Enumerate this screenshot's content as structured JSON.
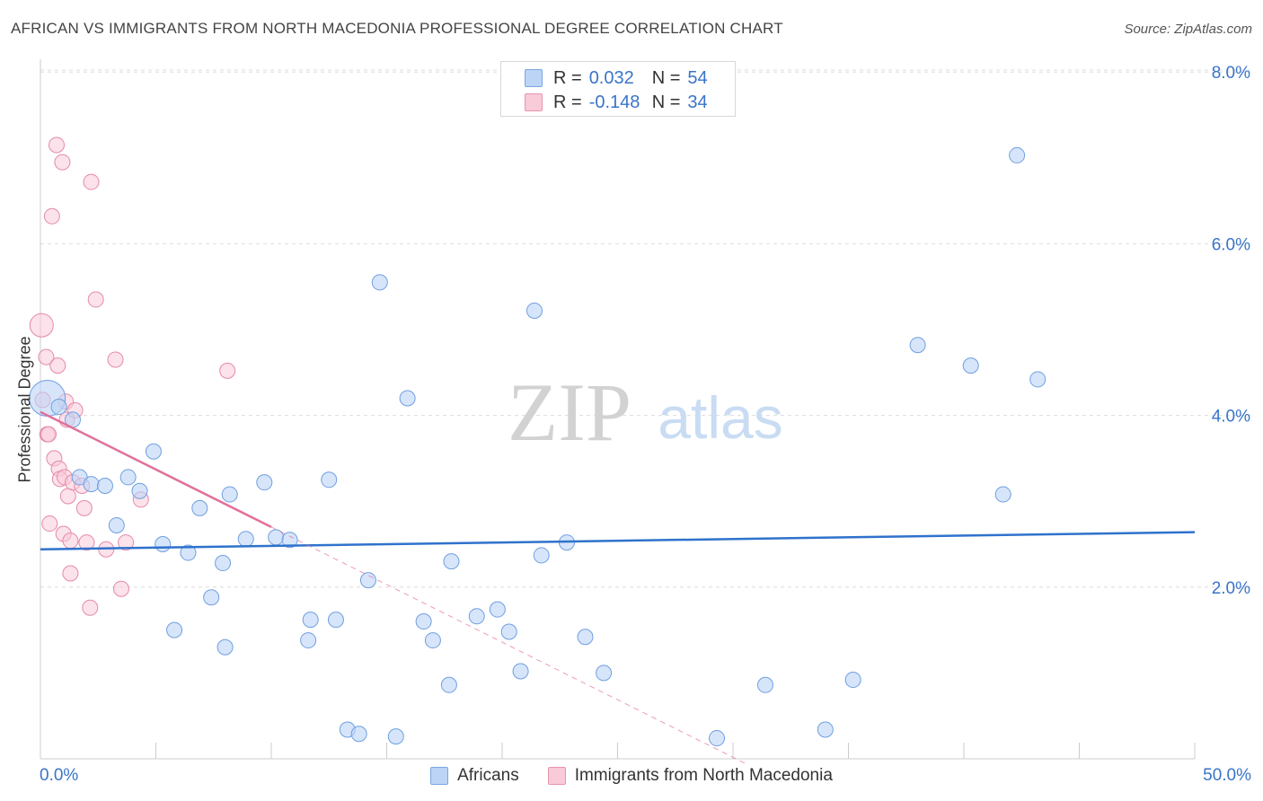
{
  "header": {
    "title": "AFRICAN VS IMMIGRANTS FROM NORTH MACEDONIA PROFESSIONAL DEGREE CORRELATION CHART",
    "source": "Source: ZipAtlas.com"
  },
  "legend_top": {
    "rows": [
      {
        "r_label": "R =",
        "r_value": "0.032",
        "n_label": "N =",
        "n_value": "54"
      },
      {
        "r_label": "R =",
        "r_value": "-0.148",
        "n_label": "N =",
        "n_value": "34"
      }
    ]
  },
  "legend_bottom": {
    "items": [
      {
        "label": "Africans"
      },
      {
        "label": "Immigrants from North Macedonia"
      }
    ]
  },
  "watermark": {
    "zip": "ZIP",
    "atlas": "atlas"
  },
  "colors": {
    "blue_fill": "#bcd4f6",
    "blue_stroke": "#6f9fe0",
    "blue_line": "#2f72cc",
    "pink_fill": "#f9cad8",
    "pink_stroke": "#e58aa8",
    "pink_line": "#e2709a",
    "tick_label": "#3a74c8",
    "grid": "#dddddd"
  },
  "chart_data": {
    "type": "scatter",
    "title": "AFRICAN VS IMMIGRANTS FROM NORTH MACEDONIA PROFESSIONAL DEGREE CORRELATION CHART",
    "xlabel": "",
    "ylabel": "Professional Degree",
    "xlim": [
      0,
      50
    ],
    "ylim": [
      0,
      8.2
    ],
    "x_tick_labels": [
      "0.0%",
      "50.0%"
    ],
    "y_ticks": [
      2,
      4,
      6,
      8
    ],
    "y_tick_labels": [
      "2.0%",
      "4.0%",
      "6.0%",
      "8.0%"
    ],
    "grid": true,
    "legend_position": "top-center",
    "series": [
      {
        "name": "Africans",
        "color": "#bcd4f6",
        "points": [
          {
            "x": 0.3,
            "y": 4.2,
            "big": true
          },
          {
            "x": 0.8,
            "y": 4.1
          },
          {
            "x": 1.4,
            "y": 3.95
          },
          {
            "x": 1.7,
            "y": 3.28
          },
          {
            "x": 2.2,
            "y": 3.2
          },
          {
            "x": 2.8,
            "y": 3.18
          },
          {
            "x": 3.3,
            "y": 2.72
          },
          {
            "x": 3.8,
            "y": 3.28
          },
          {
            "x": 4.3,
            "y": 3.12
          },
          {
            "x": 4.9,
            "y": 3.58
          },
          {
            "x": 5.3,
            "y": 2.5
          },
          {
            "x": 5.8,
            "y": 1.5
          },
          {
            "x": 6.4,
            "y": 2.4
          },
          {
            "x": 6.9,
            "y": 2.92
          },
          {
            "x": 7.4,
            "y": 1.88
          },
          {
            "x": 7.9,
            "y": 2.28
          },
          {
            "x": 8.0,
            "y": 1.3
          },
          {
            "x": 8.2,
            "y": 3.08
          },
          {
            "x": 8.9,
            "y": 2.56
          },
          {
            "x": 9.7,
            "y": 3.22
          },
          {
            "x": 10.2,
            "y": 2.58
          },
          {
            "x": 10.8,
            "y": 2.55
          },
          {
            "x": 11.6,
            "y": 1.38
          },
          {
            "x": 11.7,
            "y": 1.62
          },
          {
            "x": 12.5,
            "y": 3.25
          },
          {
            "x": 12.8,
            "y": 1.62
          },
          {
            "x": 13.3,
            "y": 0.34
          },
          {
            "x": 13.8,
            "y": 0.29
          },
          {
            "x": 14.2,
            "y": 2.08
          },
          {
            "x": 14.7,
            "y": 5.55
          },
          {
            "x": 15.4,
            "y": 0.26
          },
          {
            "x": 15.9,
            "y": 4.2
          },
          {
            "x": 16.6,
            "y": 1.6
          },
          {
            "x": 17.0,
            "y": 1.38
          },
          {
            "x": 17.7,
            "y": 0.86
          },
          {
            "x": 17.8,
            "y": 2.3
          },
          {
            "x": 18.9,
            "y": 1.66
          },
          {
            "x": 19.8,
            "y": 1.74
          },
          {
            "x": 20.3,
            "y": 1.48
          },
          {
            "x": 20.8,
            "y": 1.02
          },
          {
            "x": 21.4,
            "y": 5.22
          },
          {
            "x": 21.7,
            "y": 2.37
          },
          {
            "x": 22.8,
            "y": 2.52
          },
          {
            "x": 23.6,
            "y": 1.42
          },
          {
            "x": 24.4,
            "y": 1.0
          },
          {
            "x": 29.3,
            "y": 0.24
          },
          {
            "x": 31.4,
            "y": 0.86
          },
          {
            "x": 34.0,
            "y": 0.34
          },
          {
            "x": 35.2,
            "y": 0.92
          },
          {
            "x": 38.0,
            "y": 4.82
          },
          {
            "x": 40.3,
            "y": 4.58
          },
          {
            "x": 41.7,
            "y": 3.08
          },
          {
            "x": 42.3,
            "y": 7.03
          },
          {
            "x": 43.2,
            "y": 4.42
          }
        ],
        "trend": {
          "x": [
            0,
            50
          ],
          "y": [
            2.44,
            2.64
          ]
        }
      },
      {
        "name": "Immigrants from North Macedonia",
        "color": "#f9cad8",
        "points": [
          {
            "x": 0.05,
            "y": 5.05,
            "big": true
          },
          {
            "x": 0.1,
            "y": 4.18
          },
          {
            "x": 0.25,
            "y": 4.68
          },
          {
            "x": 0.3,
            "y": 3.78
          },
          {
            "x": 0.35,
            "y": 3.78
          },
          {
            "x": 0.4,
            "y": 2.74
          },
          {
            "x": 0.5,
            "y": 6.32
          },
          {
            "x": 0.6,
            "y": 3.5
          },
          {
            "x": 0.7,
            "y": 7.15
          },
          {
            "x": 0.75,
            "y": 4.58
          },
          {
            "x": 0.8,
            "y": 3.38
          },
          {
            "x": 0.85,
            "y": 3.26
          },
          {
            "x": 0.95,
            "y": 6.95
          },
          {
            "x": 1.0,
            "y": 2.62
          },
          {
            "x": 1.05,
            "y": 3.28
          },
          {
            "x": 1.1,
            "y": 4.16
          },
          {
            "x": 1.15,
            "y": 3.95
          },
          {
            "x": 1.2,
            "y": 3.06
          },
          {
            "x": 1.3,
            "y": 2.16
          },
          {
            "x": 1.3,
            "y": 2.54
          },
          {
            "x": 1.4,
            "y": 3.22
          },
          {
            "x": 1.5,
            "y": 4.06
          },
          {
            "x": 1.8,
            "y": 3.18
          },
          {
            "x": 1.9,
            "y": 2.92
          },
          {
            "x": 2.0,
            "y": 2.52
          },
          {
            "x": 2.15,
            "y": 1.76
          },
          {
            "x": 2.2,
            "y": 6.72
          },
          {
            "x": 2.4,
            "y": 5.35
          },
          {
            "x": 2.85,
            "y": 2.44
          },
          {
            "x": 3.25,
            "y": 4.65
          },
          {
            "x": 3.5,
            "y": 1.98
          },
          {
            "x": 3.7,
            "y": 2.52
          },
          {
            "x": 4.35,
            "y": 3.02
          },
          {
            "x": 8.1,
            "y": 4.52
          }
        ],
        "trend": {
          "x": [
            0,
            10
          ],
          "y": [
            4.04,
            2.7
          ]
        },
        "trend_extension": {
          "x": [
            10,
            30.5
          ],
          "y": [
            2.7,
            -0.05
          ]
        }
      }
    ]
  }
}
